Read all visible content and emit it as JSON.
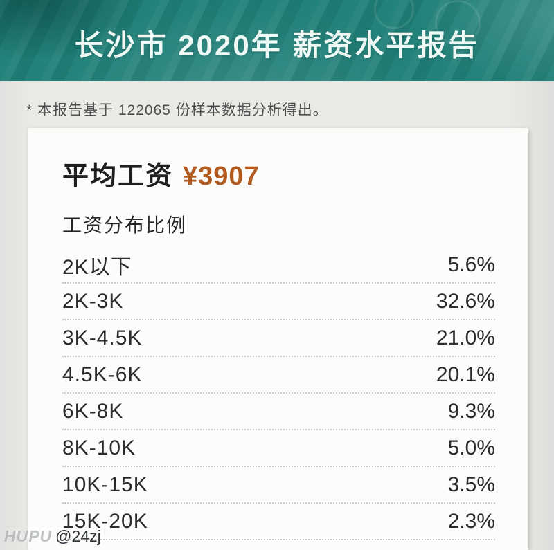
{
  "header": {
    "title": "长沙市 2020年 薪资水平报告",
    "background_color": "#1f7f77",
    "text_color": "#eef9f6"
  },
  "note": {
    "text": "* 本报告基于 122065 份样本数据分析得出。"
  },
  "card": {
    "average_label": "平均工资",
    "average_value": "¥3907",
    "average_value_color": "#b15a20",
    "distribution_title": "工资分布比例"
  },
  "chart_data": {
    "type": "table",
    "title": "工资分布比例",
    "categories": [
      "2K以下",
      "2K-3K",
      "3K-4.5K",
      "4.5K-6K",
      "6K-8K",
      "8K-10K",
      "10K-15K",
      "15K-20K"
    ],
    "values": [
      5.6,
      32.6,
      21.0,
      20.1,
      9.3,
      5.0,
      3.5,
      2.3
    ],
    "value_labels": [
      "5.6%",
      "32.6%",
      "21.0%",
      "20.1%",
      "9.3%",
      "5.0%",
      "3.5%",
      "2.3%"
    ],
    "unit": "%"
  },
  "watermark": {
    "brand": "HUPU",
    "user": "@24zj"
  }
}
